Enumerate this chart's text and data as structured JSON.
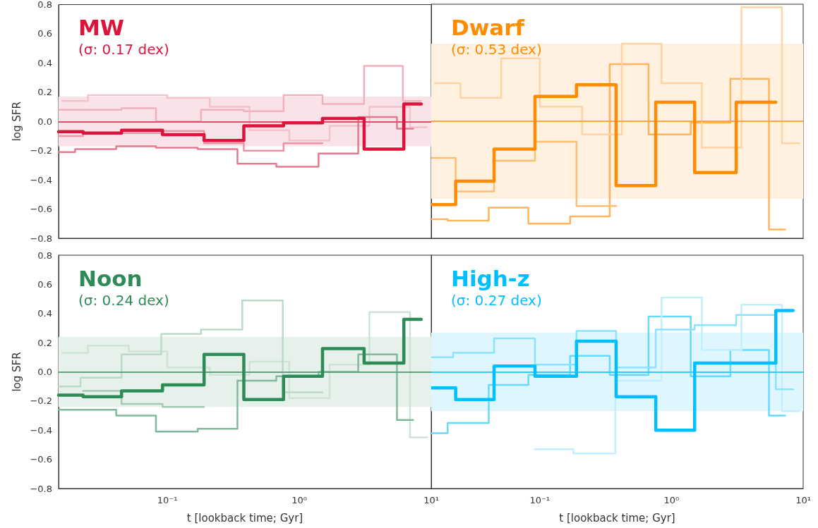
{
  "chart_data": [
    {
      "type": "step",
      "title": "MW",
      "subtitle": "(σ: 0.17 dex)",
      "ylabel": "log SFR",
      "log": "x",
      "tick_labels": "y",
      "xlim": [
        0.015,
        10
      ],
      "ylim": [
        -0.8,
        0.8
      ],
      "yticks": [
        {
          "value": -0.8,
          "label": "−0.8"
        },
        {
          "value": -0.6,
          "label": "−0.6"
        },
        {
          "value": -0.4,
          "label": "−0.4"
        },
        {
          "value": -0.2,
          "label": "−0.2"
        },
        {
          "value": 0,
          "label": "0.0"
        },
        {
          "value": 0.2,
          "label": "0.2"
        },
        {
          "value": 0.4,
          "label": "0.4"
        },
        {
          "value": 0.6,
          "label": "0.6"
        },
        {
          "value": 0.8,
          "label": "0.8"
        }
      ],
      "bands": [
        {
          "axis": "y",
          "from": -0.17,
          "to": 0.17,
          "color": "#fae3e8"
        }
      ],
      "ref_lines": [
        {
          "axis": "y",
          "value": 0,
          "color": "#e34d69"
        }
      ],
      "series": [
        {
          "color": "#dc143c",
          "x": [
            0.015,
            0.023,
            0.045,
            0.092,
            0.19,
            0.38,
            0.76,
            1.5,
            3.1,
            6.2,
            8.4
          ],
          "values": [
            -0.07,
            -0.08,
            -0.06,
            -0.09,
            -0.13,
            -0.03,
            -0.01,
            0.02,
            -0.19,
            0.12,
            0.12
          ]
        },
        {
          "color": "#f4c2cc",
          "x": [
            0.016,
            0.025,
            0.1,
            0.21,
            0.42,
            0.84,
            1.7,
            3.4,
            6.9,
            9.3
          ],
          "values": [
            0.14,
            0.18,
            0.16,
            0.1,
            -0.06,
            -0.13,
            -0.03,
            0.1,
            -0.04,
            -0.04
          ]
        },
        {
          "color": "#f0b0bd",
          "x": [
            0.015,
            0.045,
            0.082,
            0.18,
            0.38,
            0.76,
            1.5,
            3.1,
            6.1,
            8.3
          ],
          "values": [
            0.08,
            0.09,
            0.0,
            0.08,
            0.07,
            0.18,
            0.12,
            0.38,
            0.14,
            0.14
          ]
        },
        {
          "color": "#e57a8e",
          "x": [
            0.015,
            0.02,
            0.041,
            0.082,
            0.17,
            0.34,
            0.67,
            1.4,
            2.8,
            5.5,
            7.3
          ],
          "values": [
            -0.21,
            -0.19,
            -0.17,
            -0.18,
            -0.19,
            -0.29,
            -0.31,
            -0.22,
            0.03,
            -0.05,
            -0.05
          ]
        },
        {
          "color": "#eb94a5",
          "x": [
            0.015,
            0.023,
            0.092,
            0.19,
            0.38,
            0.76,
            1.5
          ],
          "values": [
            -0.1,
            -0.08,
            -0.065,
            -0.15,
            -0.2,
            -0.15,
            -0.15
          ]
        }
      ]
    },
    {
      "type": "step",
      "title": "Dwarf",
      "subtitle": "(σ: 0.53 dex)",
      "log": "x",
      "tick_labels": false,
      "xlim": [
        0.015,
        10
      ],
      "ylim": [
        -0.8,
        0.8
      ],
      "bands": [
        {
          "axis": "y",
          "from": -0.53,
          "to": 0.53,
          "color": "#fff0e0"
        }
      ],
      "ref_lines": [
        {
          "axis": "y",
          "value": 0,
          "color": "#ffa640"
        }
      ],
      "series": [
        {
          "color": "#ff8c00",
          "x": [
            0.015,
            0.023,
            0.045,
            0.092,
            0.19,
            0.38,
            0.76,
            1.5,
            3.1,
            6.2
          ],
          "values": [
            -0.57,
            -0.41,
            -0.19,
            0.17,
            0.25,
            -0.44,
            0.13,
            -0.35,
            0.13,
            0.13
          ]
        },
        {
          "color": "#ffb45c",
          "x": [
            0.015,
            0.02,
            0.041,
            0.082,
            0.17,
            0.34,
            0.67,
            1.4,
            2.8,
            5.5,
            7.3
          ],
          "values": [
            -0.67,
            -0.68,
            -0.59,
            -0.7,
            -0.65,
            0.39,
            -0.09,
            -0.01,
            0.29,
            -0.74,
            -0.74
          ]
        },
        {
          "color": "#ffd3a3",
          "x": [
            0.016,
            0.025,
            0.051,
            0.1,
            0.21,
            0.42,
            0.84,
            1.7,
            3.4,
            6.9,
            9.3
          ],
          "values": [
            0.26,
            0.16,
            0.43,
            0.1,
            -0.09,
            0.53,
            0.26,
            -0.18,
            0.78,
            -0.15,
            -0.15
          ]
        },
        {
          "color": "#ffbe73",
          "x": [
            0.015,
            0.023,
            0.045,
            0.092,
            0.19,
            0.38
          ],
          "values": [
            -0.25,
            -0.48,
            -0.27,
            -0.14,
            -0.58,
            -0.58
          ]
        }
      ]
    },
    {
      "type": "step",
      "title": "Noon",
      "subtitle": "(σ: 0.24 dex)",
      "xlabel": "t [lookback time; Gyr]",
      "ylabel": "log SFR",
      "log": "x",
      "xlim": [
        0.015,
        10
      ],
      "ylim": [
        -0.8,
        0.8
      ],
      "xticks": [
        {
          "value": 0.1,
          "label": "10⁻¹"
        },
        {
          "value": 1,
          "label": "10⁰"
        },
        {
          "value": 10,
          "label": "10¹"
        }
      ],
      "yticks": [
        {
          "value": -0.8,
          "label": "−0.8"
        },
        {
          "value": -0.6,
          "label": "−0.6"
        },
        {
          "value": -0.4,
          "label": "−0.4"
        },
        {
          "value": -0.2,
          "label": "−0.2"
        },
        {
          "value": 0,
          "label": "0.0"
        },
        {
          "value": 0.2,
          "label": "0.2"
        },
        {
          "value": 0.4,
          "label": "0.4"
        },
        {
          "value": 0.6,
          "label": "0.6"
        },
        {
          "value": 0.8,
          "label": "0.8"
        }
      ],
      "bands": [
        {
          "axis": "y",
          "from": -0.24,
          "to": 0.24,
          "color": "#e6f1eb"
        }
      ],
      "ref_lines": [
        {
          "axis": "y",
          "value": 0,
          "color": "#5da57d"
        }
      ],
      "series": [
        {
          "color": "#2e8b57",
          "x": [
            0.015,
            0.023,
            0.045,
            0.092,
            0.19,
            0.38,
            0.76,
            1.5,
            3.1,
            6.2,
            8.4
          ],
          "values": [
            -0.16,
            -0.17,
            -0.13,
            -0.09,
            0.12,
            -0.19,
            -0.03,
            0.16,
            0.06,
            0.36,
            0.36
          ]
        },
        {
          "color": "#cde3d6",
          "x": [
            0.016,
            0.025,
            0.051,
            0.1,
            0.21,
            0.42,
            0.84,
            1.7,
            3.4,
            6.9,
            9.3
          ],
          "values": [
            0.13,
            0.18,
            0.14,
            0.03,
            -0.02,
            0.07,
            -0.18,
            0.05,
            0.41,
            -0.45,
            -0.45
          ]
        },
        {
          "color": "#bcd9c8",
          "x": [
            0.015,
            0.022,
            0.045,
            0.09,
            0.18,
            0.37,
            0.75,
            1.5
          ],
          "values": [
            -0.1,
            -0.04,
            0.12,
            0.26,
            0.29,
            0.49,
            -0.14,
            -0.14
          ]
        },
        {
          "color": "#82b99a",
          "x": [
            0.015,
            0.041,
            0.082,
            0.17,
            0.34,
            0.67,
            1.4,
            2.8,
            5.5,
            7.3
          ],
          "values": [
            -0.26,
            -0.3,
            -0.41,
            -0.39,
            -0.06,
            -0.03,
            0.0,
            0.12,
            -0.33,
            -0.33
          ]
        },
        {
          "color": "#a3c9b3",
          "x": [
            0.023,
            0.045,
            0.092,
            0.19
          ],
          "values": [
            -0.13,
            -0.22,
            -0.24,
            -0.24
          ]
        }
      ]
    },
    {
      "type": "step",
      "title": "High-z",
      "subtitle": "(σ: 0.27 dex)",
      "xlabel": "t [lookback time; Gyr]",
      "log": "x",
      "tick_labels": "x",
      "xlim": [
        0.015,
        10
      ],
      "ylim": [
        -0.8,
        0.8
      ],
      "xticks": [
        {
          "value": 0.1,
          "label": "10⁻¹"
        },
        {
          "value": 1,
          "label": "10⁰"
        },
        {
          "value": 10,
          "label": "10¹"
        }
      ],
      "bands": [
        {
          "axis": "y",
          "from": -0.27,
          "to": 0.27,
          "color": "#e0f6ff"
        }
      ],
      "ref_lines": [
        {
          "axis": "y",
          "value": 0,
          "color": "#33ccff"
        }
      ],
      "series": [
        {
          "color": "#00bfff",
          "x": [
            0.015,
            0.023,
            0.045,
            0.092,
            0.19,
            0.38,
            0.76,
            1.5,
            3.1,
            6.2,
            8.4
          ],
          "values": [
            -0.11,
            -0.19,
            0.04,
            -0.03,
            0.21,
            -0.17,
            -0.4,
            0.06,
            0.06,
            0.42,
            0.42
          ]
        },
        {
          "color": "#66d9ff",
          "x": [
            0.015,
            0.02,
            0.041,
            0.082,
            0.17,
            0.34,
            0.67,
            1.4,
            2.8,
            5.5,
            7.3
          ],
          "values": [
            -0.42,
            -0.35,
            -0.09,
            -0.02,
            0.11,
            -0.02,
            0.38,
            -0.03,
            0.15,
            -0.3,
            -0.3
          ]
        },
        {
          "color": "#c2efff",
          "x": [
            0.092,
            0.18,
            0.375,
            0.84,
            1.7,
            3.4,
            6.9,
            9.3
          ],
          "values": [
            -0.53,
            -0.56,
            -0.06,
            0.51,
            0.15,
            0.46,
            -0.27,
            -0.27
          ]
        },
        {
          "color": "#8ae3ff",
          "x": [
            0.015,
            0.022,
            0.045,
            0.092,
            0.19,
            0.38,
            0.76,
            1.5,
            3.1,
            6.2,
            8.4
          ],
          "values": [
            0.1,
            0.13,
            0.23,
            0.05,
            0.28,
            0.03,
            0.29,
            0.32,
            0.39,
            -0.12,
            -0.12
          ]
        }
      ]
    }
  ]
}
